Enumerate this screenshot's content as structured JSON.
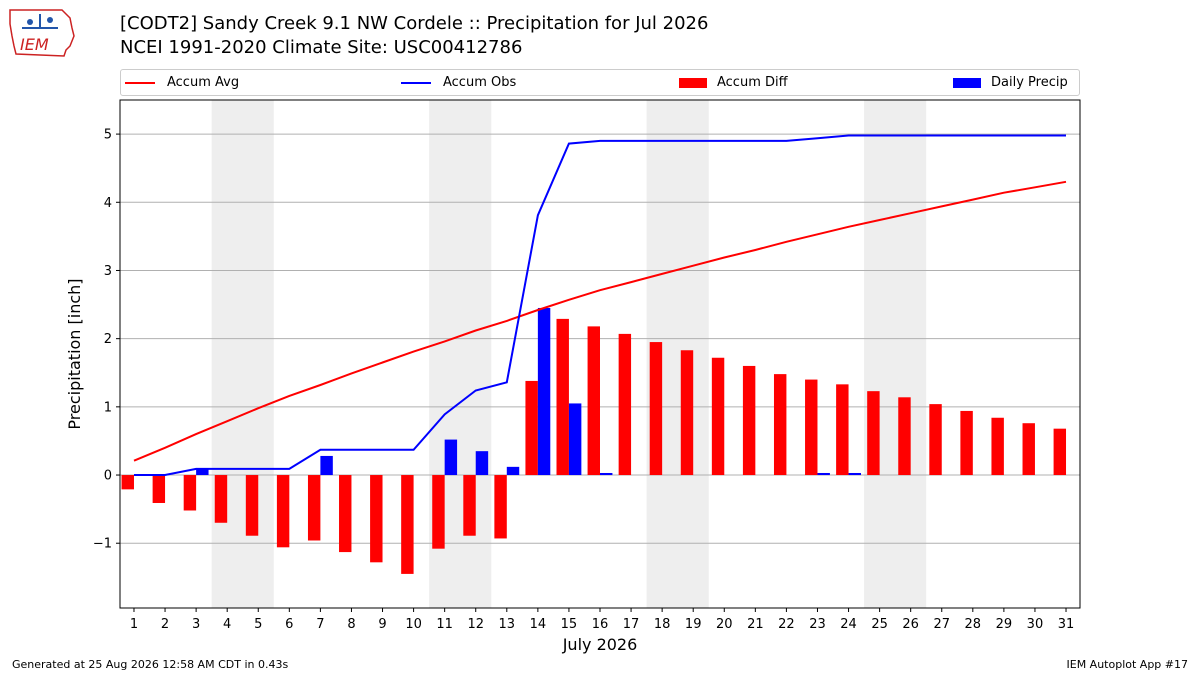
{
  "title_line1": "[CODT2] Sandy Creek 9.1 NW Cordele :: Precipitation for Jul 2026",
  "title_line2": "NCEI 1991-2020 Climate Site: USC00412786",
  "logo_text": "IEM",
  "footer_left": "Generated at 25 Aug 2026 12:58 AM CDT in 0.43s",
  "footer_right": "IEM Autoplot App #17",
  "legend": [
    {
      "label": "Accum Avg",
      "kind": "line",
      "color": "#ff0000"
    },
    {
      "label": "Accum Obs",
      "kind": "line",
      "color": "#0000ff"
    },
    {
      "label": "Accum Diff",
      "kind": "bar",
      "color": "#ff0000"
    },
    {
      "label": "Daily Precip",
      "kind": "bar",
      "color": "#0000ff"
    }
  ],
  "chart_data": {
    "type": "bar",
    "xlabel": "July 2026",
    "ylabel": "Precipitation [inch]",
    "ylim": [
      -1.95,
      5.5
    ],
    "yticks": [
      -1,
      0,
      1,
      2,
      3,
      4,
      5
    ],
    "ytick_labels": [
      "−1",
      "0",
      "1",
      "2",
      "3",
      "4",
      "5"
    ],
    "grid": true,
    "weekend_shading": [
      [
        4,
        5
      ],
      [
        11,
        12
      ],
      [
        18,
        19
      ],
      [
        25,
        26
      ]
    ],
    "categories": [
      "1",
      "2",
      "3",
      "4",
      "5",
      "6",
      "7",
      "8",
      "9",
      "10",
      "11",
      "12",
      "13",
      "14",
      "15",
      "16",
      "17",
      "18",
      "19",
      "20",
      "21",
      "22",
      "23",
      "24",
      "25",
      "26",
      "27",
      "28",
      "29",
      "30",
      "31"
    ],
    "series": [
      {
        "name": "Accum Diff",
        "kind": "bar",
        "color": "#ff0000",
        "values": [
          -0.21,
          -0.41,
          -0.52,
          -0.7,
          -0.89,
          -1.06,
          -0.96,
          -1.13,
          -1.28,
          -1.45,
          -1.08,
          -0.89,
          -0.93,
          1.38,
          2.29,
          2.18,
          2.07,
          1.95,
          1.83,
          1.72,
          1.6,
          1.48,
          1.4,
          1.33,
          1.23,
          1.14,
          1.04,
          0.94,
          0.84,
          0.76,
          0.68
        ]
      },
      {
        "name": "Daily Precip",
        "kind": "bar",
        "color": "#0000ff",
        "values": [
          0,
          0,
          0.09,
          0,
          0,
          0,
          0.28,
          0,
          0,
          0,
          0.52,
          0.35,
          0.12,
          2.45,
          1.05,
          0.03,
          0,
          0,
          0,
          0,
          0,
          0,
          0.03,
          0.03,
          0,
          0,
          0,
          0,
          0,
          0,
          0
        ]
      },
      {
        "name": "Accum Avg",
        "kind": "line",
        "color": "#ff0000",
        "values": [
          0.21,
          0.4,
          0.6,
          0.79,
          0.98,
          1.16,
          1.32,
          1.49,
          1.65,
          1.81,
          1.96,
          2.12,
          2.26,
          2.42,
          2.57,
          2.71,
          2.83,
          2.95,
          3.07,
          3.19,
          3.3,
          3.42,
          3.53,
          3.64,
          3.74,
          3.84,
          3.94,
          4.04,
          4.14,
          4.22,
          4.3
        ]
      },
      {
        "name": "Accum Obs",
        "kind": "line",
        "color": "#0000ff",
        "values": [
          0,
          0,
          0.09,
          0.09,
          0.09,
          0.09,
          0.37,
          0.37,
          0.37,
          0.37,
          0.89,
          1.24,
          1.36,
          3.81,
          4.86,
          4.9,
          4.9,
          4.9,
          4.9,
          4.9,
          4.9,
          4.9,
          4.94,
          4.98,
          4.98,
          4.98,
          4.98,
          4.98,
          4.98,
          4.98,
          4.98
        ]
      }
    ]
  }
}
